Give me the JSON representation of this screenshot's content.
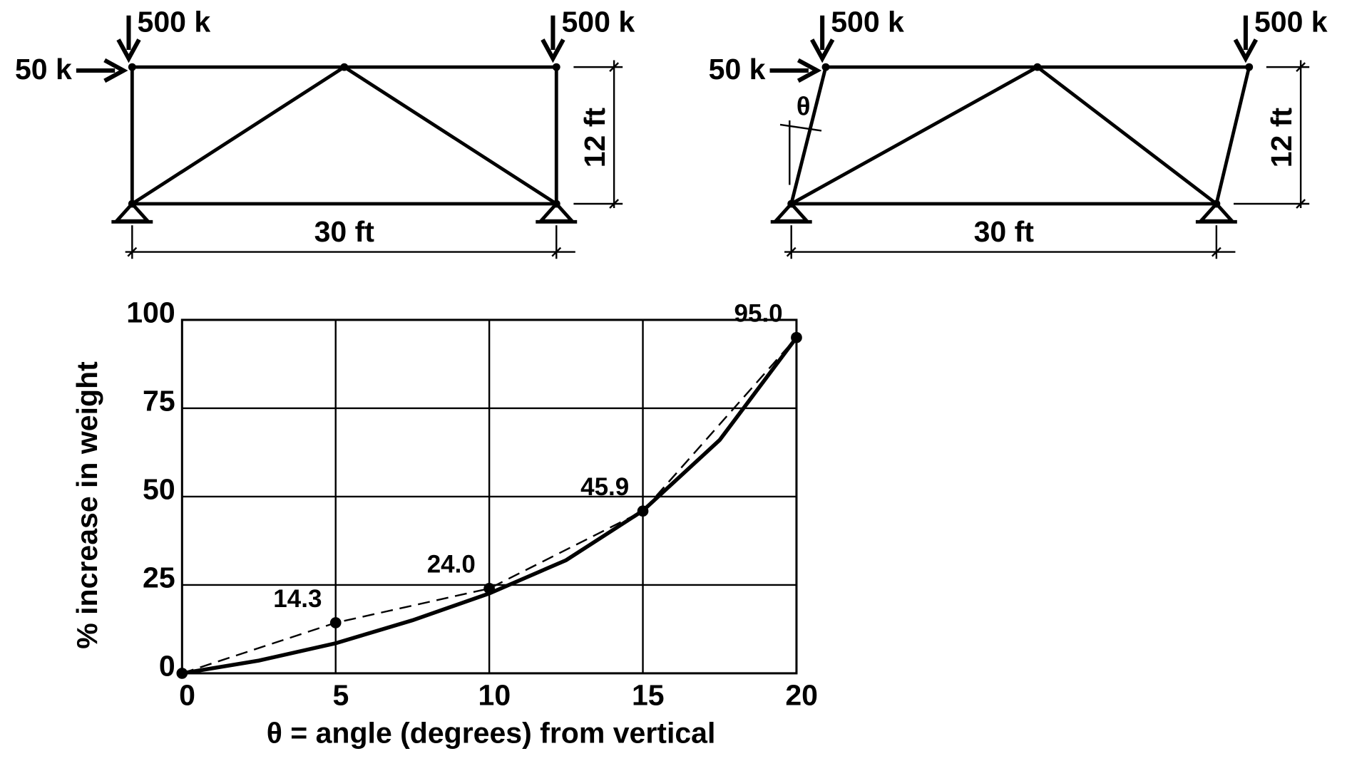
{
  "diagrams": [
    {
      "loads": [
        "500 k",
        "500 k"
      ],
      "lateral_load": "50 k",
      "height": "12 ft",
      "span": "30 ft"
    },
    {
      "loads": [
        "500 k",
        "500 k"
      ],
      "lateral_load": "50 k",
      "height": "12 ft",
      "span": "30 ft",
      "angle": "θ"
    }
  ],
  "chart_data": {
    "type": "line",
    "xlabel": "θ = angle (degrees) from vertical",
    "ylabel": "% increase in weight",
    "xlim": [
      0,
      20
    ],
    "ylim": [
      0,
      100
    ],
    "xticks": [
      0,
      5,
      10,
      15,
      20
    ],
    "yticks": [
      0,
      25,
      50,
      75,
      100
    ],
    "grid": true,
    "series": [
      {
        "x": [
          0,
          5,
          10,
          15,
          20
        ],
        "values": [
          0,
          14.3,
          24.0,
          45.9,
          95.0
        ],
        "value_labels": [
          null,
          "14.3",
          "24.0",
          "45.9",
          "95.0"
        ],
        "color": "#000000",
        "dashed": true,
        "markers": true
      },
      {
        "x": [
          0,
          2.5,
          5,
          7.5,
          10,
          12.5,
          15,
          17.5,
          20
        ],
        "values": [
          0,
          3.6,
          8.5,
          15,
          22.6,
          32,
          46,
          66,
          95
        ],
        "color": "#000000",
        "dashed": false,
        "markers": false
      }
    ]
  }
}
